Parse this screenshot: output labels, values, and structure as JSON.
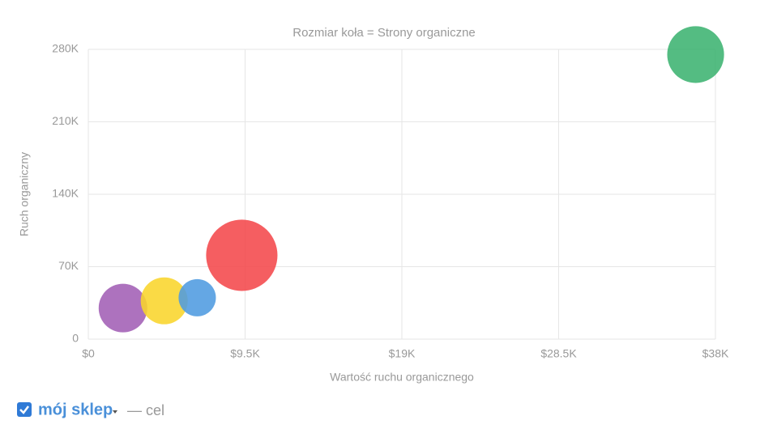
{
  "chart_data": {
    "type": "bubble",
    "title": "Rozmiar koła = Strony organiczne",
    "xlabel": "Wartość ruchu organicznego",
    "ylabel": "Ruch organiczny",
    "x": [
      2100,
      4600,
      6600,
      9300,
      36800
    ],
    "y": [
      30000,
      37000,
      40000,
      81000,
      275000
    ],
    "sizes": [
      900,
      840,
      530,
      1940,
      1230
    ],
    "colors": [
      "#a25fb5",
      "#f9d52b",
      "#4e9be0",
      "#f4484b",
      "#3cb371"
    ],
    "xlim": [
      0,
      38000
    ],
    "ylim": [
      0,
      280000
    ],
    "xticks": [
      {
        "value": 0,
        "label": "$0"
      },
      {
        "value": 9500,
        "label": "$9.5K"
      },
      {
        "value": 19000,
        "label": "$19K"
      },
      {
        "value": 28500,
        "label": "$28.5K"
      },
      {
        "value": 38000,
        "label": "$38K"
      }
    ],
    "yticks": [
      0,
      {
        "value": 70000,
        "label": "70K"
      },
      {
        "value": 140000,
        "label": "140K"
      },
      {
        "value": 210000,
        "label": "210K"
      },
      {
        "value": 280000,
        "label": "280K"
      }
    ],
    "grid": true
  },
  "legend": {
    "label": "mój sklep",
    "note": "— cel"
  }
}
